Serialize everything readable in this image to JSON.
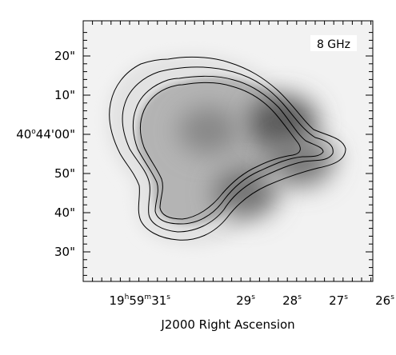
{
  "chart_data": {
    "type": "heatmap",
    "title": "",
    "band_label": "8 GHz",
    "xlabel": "J2000 Right Ascension",
    "ylabel": "",
    "colormap": "grayscale (white = low, dark gray = high)",
    "contours": {
      "levels_count": 4,
      "color": "#000000"
    },
    "x_ticks": [
      {
        "h": "19",
        "m": "59",
        "s": "31",
        "sec": 31
      },
      {
        "s": "29",
        "sec": 29
      },
      {
        "s": "28",
        "sec": 28
      },
      {
        "s": "27",
        "sec": 27
      },
      {
        "s": "26",
        "sec": 26
      }
    ],
    "y_ticks": [
      {
        "label": "20\"",
        "offset_arcsec": 20
      },
      {
        "label": "10\"",
        "offset_arcsec": 10
      },
      {
        "label": "40°44'00\"",
        "offset_arcsec": 0,
        "deg": "40",
        "min": "44",
        "sec": "00"
      },
      {
        "label": "50\"",
        "offset_arcsec": -10
      },
      {
        "label": "40\"",
        "offset_arcsec": -20
      },
      {
        "label": "30\"",
        "offset_arcsec": -30
      }
    ],
    "emission_peaks": [
      {
        "ra_sec": 28.2,
        "dec_offset_arcsec": 3,
        "relative_intensity": 1.0
      },
      {
        "ra_sec": 29.0,
        "dec_offset_arcsec": -15,
        "relative_intensity": 0.75
      },
      {
        "ra_sec": 29.8,
        "dec_offset_arcsec": 1,
        "relative_intensity": 0.55
      },
      {
        "ra_sec": 27.8,
        "dec_offset_arcsec": -7,
        "relative_intensity": 0.7
      }
    ]
  }
}
